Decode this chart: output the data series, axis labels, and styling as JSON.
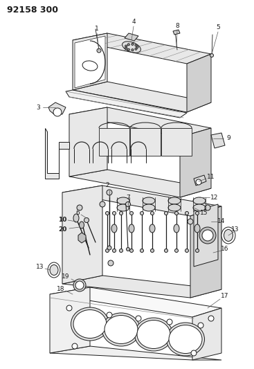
{
  "title": "92158 300",
  "bg_color": "#ffffff",
  "fg_color": "#1a1a1a",
  "fig_width": 3.67,
  "fig_height": 5.33,
  "dpi": 100,
  "lw": 0.7,
  "title_fontsize": 9,
  "label_fontsize": 6.5
}
